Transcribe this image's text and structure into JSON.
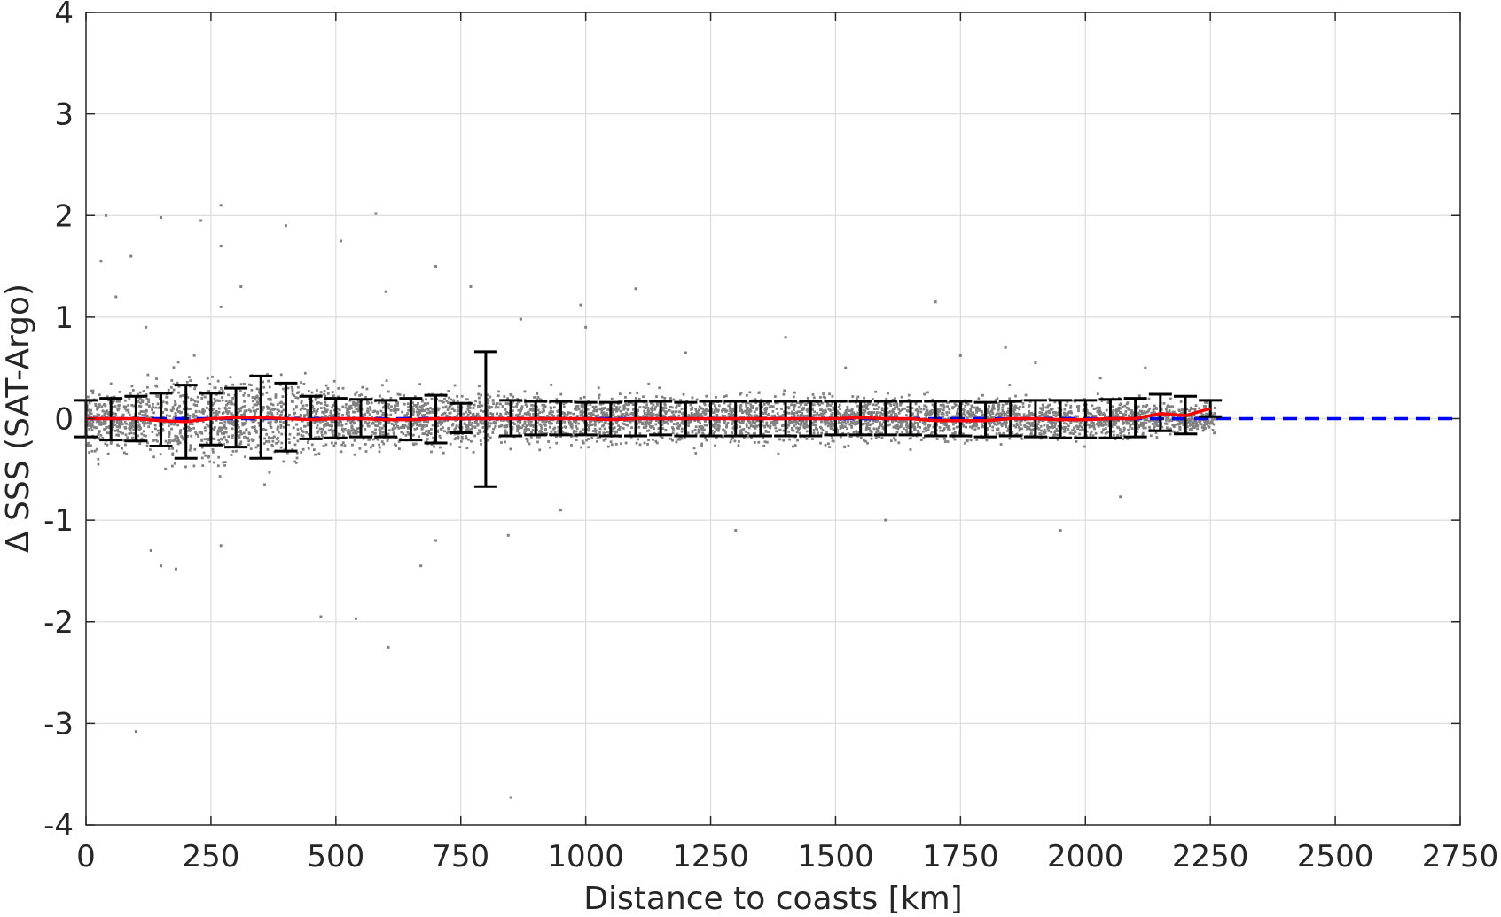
{
  "chart_data": {
    "type": "scatter",
    "title": "",
    "xlabel": "Distance to coasts [km]",
    "ylabel": "Δ SSS (SAT-Argo)",
    "xlim": [
      0,
      2750
    ],
    "ylim": [
      -4,
      4
    ],
    "x_ticks": [
      0,
      250,
      500,
      750,
      1000,
      1250,
      1500,
      1750,
      2000,
      2250,
      2500,
      2750
    ],
    "y_ticks": [
      -4,
      -3,
      -2,
      -1,
      0,
      1,
      2,
      3,
      4
    ],
    "x_tick_labels": [
      "0",
      "250",
      "500",
      "750",
      "1000",
      "1250",
      "1500",
      "1750",
      "2000",
      "2250",
      "2500",
      "2750"
    ],
    "y_tick_labels": [
      "-4",
      "-3",
      "-2",
      "-1",
      "0",
      "1",
      "2",
      "3",
      "4"
    ],
    "grid": true,
    "colors": {
      "scatter": "#808080",
      "mean_line": "#ff0000",
      "zero_line": "#0000ff",
      "error_bars": "#000000"
    },
    "reference_line": {
      "y": 0,
      "style": "dashed",
      "x_range": [
        0,
        2750
      ]
    },
    "scatter_envelope": [
      {
        "x": 0,
        "std": 0.25
      },
      {
        "x": 100,
        "std": 0.25
      },
      {
        "x": 200,
        "std": 0.35
      },
      {
        "x": 300,
        "std": 0.33
      },
      {
        "x": 400,
        "std": 0.33
      },
      {
        "x": 500,
        "std": 0.22
      },
      {
        "x": 750,
        "std": 0.2
      },
      {
        "x": 1000,
        "std": 0.17
      },
      {
        "x": 1250,
        "std": 0.18
      },
      {
        "x": 1500,
        "std": 0.17
      },
      {
        "x": 1750,
        "std": 0.16
      },
      {
        "x": 2000,
        "std": 0.15
      },
      {
        "x": 2100,
        "std": 0.14
      },
      {
        "x": 2200,
        "std": 0.12
      },
      {
        "x": 2260,
        "std": 0.1
      }
    ],
    "outliers": [
      [
        40,
        2.0
      ],
      [
        100,
        -3.08
      ],
      [
        150,
        1.98
      ],
      [
        270,
        2.1
      ],
      [
        270,
        1.7
      ],
      [
        270,
        1.1
      ],
      [
        270,
        -1.25
      ],
      [
        310,
        1.3
      ],
      [
        400,
        1.9
      ],
      [
        470,
        -1.95
      ],
      [
        510,
        1.75
      ],
      [
        540,
        -1.97
      ],
      [
        580,
        2.02
      ],
      [
        605,
        -2.25
      ],
      [
        670,
        -1.45
      ],
      [
        600,
        1.25
      ],
      [
        700,
        1.5
      ],
      [
        845,
        -1.15
      ],
      [
        850,
        -3.73
      ],
      [
        770,
        1.3
      ],
      [
        990,
        1.12
      ],
      [
        1100,
        1.28
      ],
      [
        1700,
        1.15
      ],
      [
        2070,
        -0.77
      ],
      [
        1950,
        -1.1
      ],
      [
        1600,
        -1.0
      ],
      [
        1300,
        -1.1
      ],
      [
        180,
        -1.48
      ],
      [
        150,
        -1.45
      ],
      [
        230,
        1.95
      ],
      [
        130,
        -1.3
      ],
      [
        1520,
        0.5
      ],
      [
        1750,
        0.62
      ],
      [
        1400,
        0.8
      ],
      [
        1200,
        0.65
      ],
      [
        1000,
        0.9
      ],
      [
        870,
        0.98
      ],
      [
        30,
        1.55
      ],
      [
        60,
        1.2
      ],
      [
        90,
        1.6
      ],
      [
        120,
        0.9
      ],
      [
        700,
        -1.2
      ],
      [
        950,
        -0.9
      ],
      [
        1840,
        0.7
      ],
      [
        1900,
        0.55
      ],
      [
        2030,
        0.4
      ],
      [
        2120,
        0.5
      ]
    ],
    "mean_series": {
      "name": "",
      "x": [
        0,
        50,
        100,
        150,
        200,
        250,
        300,
        350,
        400,
        450,
        500,
        550,
        600,
        650,
        700,
        750,
        800,
        850,
        900,
        950,
        1000,
        1050,
        1100,
        1150,
        1200,
        1250,
        1300,
        1350,
        1400,
        1450,
        1500,
        1550,
        1600,
        1650,
        1700,
        1750,
        1800,
        1850,
        1900,
        1950,
        2000,
        2050,
        2100,
        2150,
        2200,
        2250
      ],
      "values": [
        0.0,
        0.0,
        0.0,
        -0.02,
        -0.03,
        0.0,
        0.01,
        0.01,
        0.0,
        -0.01,
        0.0,
        0.0,
        -0.01,
        -0.01,
        0.0,
        0.0,
        0.0,
        0.0,
        0.0,
        0.0,
        0.0,
        -0.01,
        0.0,
        0.0,
        0.0,
        0.0,
        0.0,
        0.0,
        0.0,
        0.0,
        0.0,
        0.01,
        0.0,
        0.0,
        -0.02,
        -0.02,
        -0.02,
        0.0,
        0.0,
        -0.01,
        -0.01,
        0.0,
        0.0,
        0.05,
        0.03,
        0.1
      ]
    },
    "error_bars": {
      "x": [
        0,
        50,
        100,
        150,
        200,
        250,
        300,
        350,
        400,
        450,
        500,
        550,
        600,
        650,
        700,
        750,
        800,
        850,
        900,
        950,
        1000,
        1050,
        1100,
        1150,
        1200,
        1250,
        1300,
        1350,
        1400,
        1450,
        1500,
        1550,
        1600,
        1650,
        1700,
        1750,
        1800,
        1850,
        1900,
        1950,
        2000,
        2050,
        2100,
        2150,
        2200,
        2250
      ],
      "upper": [
        0.18,
        0.2,
        0.22,
        0.25,
        0.33,
        0.25,
        0.3,
        0.42,
        0.35,
        0.22,
        0.2,
        0.19,
        0.18,
        0.2,
        0.23,
        0.15,
        0.66,
        0.18,
        0.17,
        0.17,
        0.16,
        0.16,
        0.17,
        0.17,
        0.16,
        0.17,
        0.17,
        0.17,
        0.17,
        0.17,
        0.17,
        0.17,
        0.17,
        0.17,
        0.17,
        0.17,
        0.16,
        0.17,
        0.18,
        0.18,
        0.18,
        0.19,
        0.2,
        0.24,
        0.22,
        0.18
      ],
      "lower": [
        -0.18,
        -0.21,
        -0.22,
        -0.27,
        -0.39,
        -0.26,
        -0.28,
        -0.39,
        -0.32,
        -0.2,
        -0.19,
        -0.18,
        -0.18,
        -0.21,
        -0.24,
        -0.14,
        -0.67,
        -0.17,
        -0.16,
        -0.16,
        -0.16,
        -0.17,
        -0.17,
        -0.16,
        -0.17,
        -0.17,
        -0.17,
        -0.17,
        -0.17,
        -0.17,
        -0.16,
        -0.16,
        -0.16,
        -0.16,
        -0.17,
        -0.17,
        -0.18,
        -0.17,
        -0.18,
        -0.19,
        -0.19,
        -0.19,
        -0.18,
        -0.12,
        -0.15,
        0.02
      ]
    }
  }
}
